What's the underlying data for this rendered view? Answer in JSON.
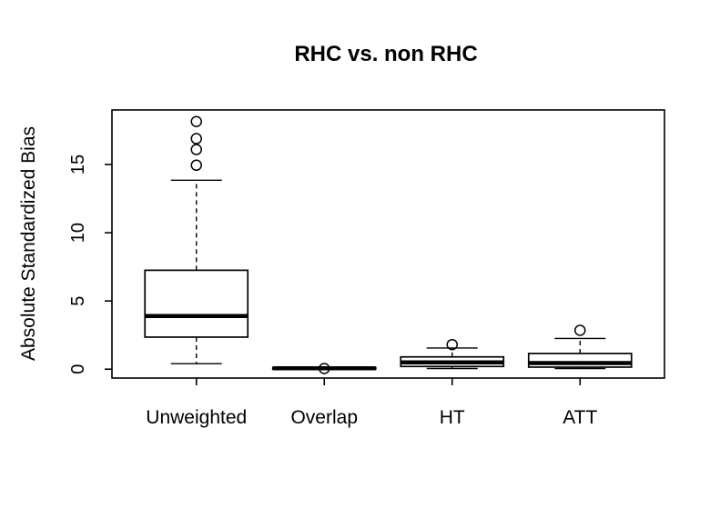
{
  "title": "RHC vs. non RHC",
  "ylabel": "Absolute Standardized Bias",
  "colors": {
    "ink": "#000000",
    "background": "#ffffff",
    "box_fill": "#ffffff"
  },
  "chart_data": {
    "type": "boxplot",
    "title": "RHC vs. non RHC",
    "xlabel": "",
    "ylabel": "Absolute Standardized Bias",
    "ylim": [
      -0.65,
      19.0
    ],
    "yticks": [
      0,
      5,
      10,
      15
    ],
    "grid": false,
    "legend": false,
    "categories": [
      "Unweighted",
      "Overlap",
      "HT",
      "ATT"
    ],
    "boxes": [
      {
        "name": "Unweighted",
        "whisker_low": 0.4,
        "q1": 2.35,
        "median": 3.9,
        "q3": 7.25,
        "whisker_high": 13.85,
        "outliers": [
          14.95,
          16.1,
          16.9,
          18.15
        ]
      },
      {
        "name": "Overlap",
        "whisker_low": 0.0,
        "q1": 0.0,
        "median": 0.07,
        "q3": 0.12,
        "whisker_high": 0.15,
        "outliers": [
          0.05
        ]
      },
      {
        "name": "HT",
        "whisker_low": 0.05,
        "q1": 0.2,
        "median": 0.5,
        "q3": 0.9,
        "whisker_high": 1.55,
        "outliers": [
          1.8
        ]
      },
      {
        "name": "ATT",
        "whisker_low": 0.05,
        "q1": 0.15,
        "median": 0.45,
        "q3": 1.15,
        "whisker_high": 2.25,
        "outliers": [
          2.85
        ]
      }
    ]
  }
}
